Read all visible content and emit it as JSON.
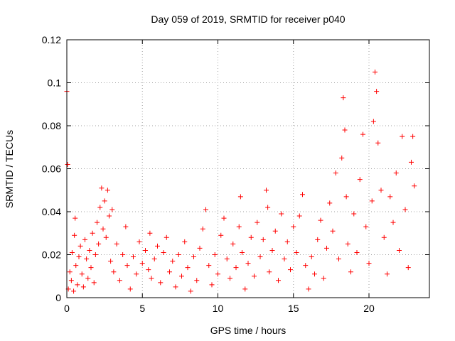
{
  "chart_data": {
    "type": "scatter",
    "title": "Day 059 of 2019, SRMTID for receiver p040",
    "xlabel": "GPS time / hours",
    "ylabel": "SRMTID / TECUs",
    "xlim": [
      0,
      24
    ],
    "ylim": [
      0,
      0.12
    ],
    "x_ticks": [
      0,
      5,
      10,
      15,
      20
    ],
    "x_tick_labels": [
      "0",
      "5",
      "10",
      "15",
      "20"
    ],
    "y_ticks": [
      0,
      0.02,
      0.04,
      0.06,
      0.08,
      0.1,
      0.12
    ],
    "y_tick_labels": [
      "0",
      "0.02",
      "0.04",
      "0.06",
      "0.08",
      "0.1",
      "0.12"
    ],
    "grid": true,
    "marker": "+",
    "color": "#ff0000",
    "series": [
      {
        "name": "SRMTID",
        "points": [
          [
            0.0,
            0.096
          ],
          [
            0.05,
            0.062
          ],
          [
            0.1,
            0.004
          ],
          [
            0.2,
            0.012
          ],
          [
            0.3,
            0.008
          ],
          [
            0.35,
            0.021
          ],
          [
            0.45,
            0.003
          ],
          [
            0.5,
            0.029
          ],
          [
            0.55,
            0.037
          ],
          [
            0.6,
            0.015
          ],
          [
            0.7,
            0.006
          ],
          [
            0.8,
            0.019
          ],
          [
            0.9,
            0.024
          ],
          [
            1.0,
            0.011
          ],
          [
            1.1,
            0.005
          ],
          [
            1.2,
            0.027
          ],
          [
            1.3,
            0.018
          ],
          [
            1.4,
            0.009
          ],
          [
            1.5,
            0.022
          ],
          [
            1.6,
            0.014
          ],
          [
            1.7,
            0.03
          ],
          [
            1.8,
            0.007
          ],
          [
            1.9,
            0.02
          ],
          [
            2.0,
            0.035
          ],
          [
            2.1,
            0.025
          ],
          [
            2.2,
            0.042
          ],
          [
            2.3,
            0.051
          ],
          [
            2.4,
            0.032
          ],
          [
            2.5,
            0.045
          ],
          [
            2.6,
            0.028
          ],
          [
            2.7,
            0.05
          ],
          [
            2.8,
            0.038
          ],
          [
            2.9,
            0.017
          ],
          [
            3.0,
            0.041
          ],
          [
            3.1,
            0.012
          ],
          [
            3.3,
            0.025
          ],
          [
            3.5,
            0.008
          ],
          [
            3.7,
            0.02
          ],
          [
            3.9,
            0.033
          ],
          [
            4.0,
            0.015
          ],
          [
            4.2,
            0.004
          ],
          [
            4.4,
            0.019
          ],
          [
            4.6,
            0.011
          ],
          [
            4.8,
            0.026
          ],
          [
            5.0,
            0.016
          ],
          [
            5.2,
            0.022
          ],
          [
            5.4,
            0.013
          ],
          [
            5.5,
            0.03
          ],
          [
            5.6,
            0.009
          ],
          [
            5.8,
            0.018
          ],
          [
            6.0,
            0.024
          ],
          [
            6.2,
            0.007
          ],
          [
            6.4,
            0.021
          ],
          [
            6.6,
            0.028
          ],
          [
            6.8,
            0.012
          ],
          [
            7.0,
            0.017
          ],
          [
            7.2,
            0.005
          ],
          [
            7.4,
            0.02
          ],
          [
            7.6,
            0.01
          ],
          [
            7.8,
            0.026
          ],
          [
            8.0,
            0.014
          ],
          [
            8.2,
            0.003
          ],
          [
            8.4,
            0.019
          ],
          [
            8.6,
            0.008
          ],
          [
            8.8,
            0.023
          ],
          [
            9.0,
            0.032
          ],
          [
            9.2,
            0.041
          ],
          [
            9.4,
            0.015
          ],
          [
            9.6,
            0.006
          ],
          [
            9.8,
            0.02
          ],
          [
            10.0,
            0.011
          ],
          [
            10.2,
            0.029
          ],
          [
            10.4,
            0.037
          ],
          [
            10.6,
            0.018
          ],
          [
            10.8,
            0.009
          ],
          [
            11.0,
            0.025
          ],
          [
            11.2,
            0.014
          ],
          [
            11.4,
            0.033
          ],
          [
            11.5,
            0.047
          ],
          [
            11.6,
            0.021
          ],
          [
            11.8,
            0.004
          ],
          [
            12.0,
            0.016
          ],
          [
            12.2,
            0.028
          ],
          [
            12.4,
            0.01
          ],
          [
            12.6,
            0.035
          ],
          [
            12.8,
            0.019
          ],
          [
            13.0,
            0.027
          ],
          [
            13.2,
            0.05
          ],
          [
            13.3,
            0.042
          ],
          [
            13.4,
            0.012
          ],
          [
            13.6,
            0.022
          ],
          [
            13.8,
            0.031
          ],
          [
            14.0,
            0.008
          ],
          [
            14.2,
            0.039
          ],
          [
            14.4,
            0.018
          ],
          [
            14.6,
            0.026
          ],
          [
            14.8,
            0.013
          ],
          [
            15.0,
            0.033
          ],
          [
            15.2,
            0.021
          ],
          [
            15.4,
            0.038
          ],
          [
            15.6,
            0.048
          ],
          [
            15.8,
            0.015
          ],
          [
            16.0,
            0.004
          ],
          [
            16.2,
            0.019
          ],
          [
            16.4,
            0.011
          ],
          [
            16.6,
            0.027
          ],
          [
            16.8,
            0.036
          ],
          [
            17.0,
            0.009
          ],
          [
            17.2,
            0.023
          ],
          [
            17.4,
            0.044
          ],
          [
            17.6,
            0.031
          ],
          [
            17.8,
            0.058
          ],
          [
            18.0,
            0.018
          ],
          [
            18.2,
            0.065
          ],
          [
            18.3,
            0.093
          ],
          [
            18.4,
            0.078
          ],
          [
            18.5,
            0.047
          ],
          [
            18.6,
            0.025
          ],
          [
            18.8,
            0.012
          ],
          [
            19.0,
            0.039
          ],
          [
            19.2,
            0.021
          ],
          [
            19.4,
            0.055
          ],
          [
            19.6,
            0.076
          ],
          [
            19.8,
            0.033
          ],
          [
            20.0,
            0.016
          ],
          [
            20.2,
            0.045
          ],
          [
            20.3,
            0.082
          ],
          [
            20.4,
            0.105
          ],
          [
            20.5,
            0.096
          ],
          [
            20.6,
            0.072
          ],
          [
            20.8,
            0.05
          ],
          [
            21.0,
            0.028
          ],
          [
            21.2,
            0.011
          ],
          [
            21.4,
            0.047
          ],
          [
            21.6,
            0.035
          ],
          [
            21.8,
            0.058
          ],
          [
            22.0,
            0.022
          ],
          [
            22.2,
            0.075
          ],
          [
            22.4,
            0.041
          ],
          [
            22.6,
            0.014
          ],
          [
            22.8,
            0.063
          ],
          [
            22.9,
            0.075
          ],
          [
            23.0,
            0.052
          ]
        ]
      }
    ]
  }
}
